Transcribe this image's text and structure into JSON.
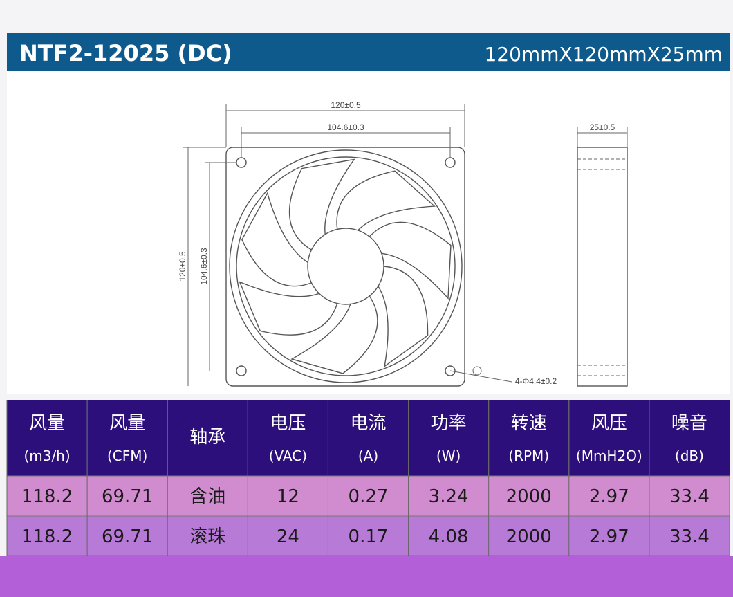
{
  "header": {
    "model": "NTF2-12025 (DC)",
    "size": "120mmX120mmX25mm"
  },
  "drawing": {
    "outer": "120±0.5",
    "inner": "104.6±0.3",
    "depth": "25±0.5",
    "holes": "4-Φ4.4±0.2"
  },
  "table": {
    "columns": [
      {
        "name": "风量",
        "unit": "(m3/h)"
      },
      {
        "name": "风量",
        "unit": "(CFM)"
      },
      {
        "name": "轴承"
      },
      {
        "name": "电压",
        "unit": "(VAC)"
      },
      {
        "name": "电流",
        "unit": "(A)"
      },
      {
        "name": "功率",
        "unit": "(W)"
      },
      {
        "name": "转速",
        "unit": "(RPM)"
      },
      {
        "name": "风压",
        "unit": "(MmH2O)"
      },
      {
        "name": "噪音",
        "unit": "(dB)"
      }
    ],
    "rows": [
      [
        118.2,
        69.71,
        "含油",
        12,
        0.27,
        3.24,
        2000,
        2.97,
        33.4
      ],
      [
        118.2,
        69.71,
        "滚珠",
        24,
        0.17,
        4.08,
        2000,
        2.97,
        33.4
      ]
    ]
  }
}
